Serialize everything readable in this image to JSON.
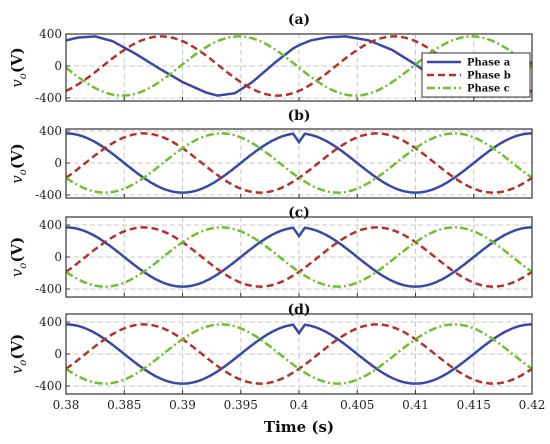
{
  "chart_data": {
    "type": "line",
    "xlabel": "Time (s)",
    "ylabel_main": "v",
    "ylabel_sub": "o",
    "ylabel_unit": "(V)",
    "xlim": [
      0.38,
      0.42
    ],
    "ylim": [
      -450,
      450
    ],
    "x_ticks": [
      0.38,
      0.385,
      0.39,
      0.395,
      0.4,
      0.405,
      0.41,
      0.415,
      0.42
    ],
    "x_tick_labels": [
      "0.38",
      "0.385",
      "0.39",
      "0.395",
      "0.4",
      "0.405",
      "0.41",
      "0.415",
      "0.42"
    ],
    "y_ticks": [
      400,
      0,
      -400
    ],
    "y_tick_labels": [
      "400",
      "0",
      "-400"
    ],
    "grid": true,
    "legend": {
      "placement": "right",
      "entries": [
        {
          "name": "Phase a",
          "color": "#3949a6",
          "dash": "solid"
        },
        {
          "name": "Phase b",
          "color": "#b5322c",
          "dash": "dashed"
        },
        {
          "name": "Phase c",
          "color": "#6fbf2f",
          "dash": "dashdot"
        }
      ]
    },
    "frequency_hz": 50,
    "amplitude_v": 370,
    "panels": [
      {
        "title": "(a)",
        "phase_a_offset_deg": 63,
        "series": [
          {
            "name": "Phase a",
            "x": [
              0.38,
              0.381,
              0.3825,
              0.384,
              0.386,
              0.388,
              0.39,
              0.392,
              0.393,
              0.3945,
              0.396,
              0.398,
              0.3995,
              0.4,
              0.401,
              0.4025,
              0.404,
              0.406,
              0.408,
              0.41,
              0.412,
              0.4135,
              0.415,
              0.417,
              0.419,
              0.42
            ],
            "y": [
              320,
              355,
              370,
              310,
              150,
              -30,
              -200,
              -330,
              -370,
              -340,
              -200,
              50,
              220,
              260,
              320,
              360,
              370,
              320,
              200,
              20,
              -200,
              -370,
              -380,
              -300,
              -100,
              50
            ]
          },
          {
            "name": "Phase b",
            "phase_deg": -120
          },
          {
            "name": "Phase c",
            "phase_deg": 120
          }
        ]
      },
      {
        "title": "(b)",
        "phase_a_offset_deg": 90,
        "notch": {
          "x": 0.4,
          "depth_v": 110
        }
      },
      {
        "title": "(c)",
        "phase_a_offset_deg": 90,
        "notch": {
          "x": 0.4,
          "depth_v": 110
        }
      },
      {
        "title": "(d)",
        "phase_a_offset_deg": 90,
        "notch": {
          "x": 0.4,
          "depth_v": 110
        }
      }
    ]
  }
}
